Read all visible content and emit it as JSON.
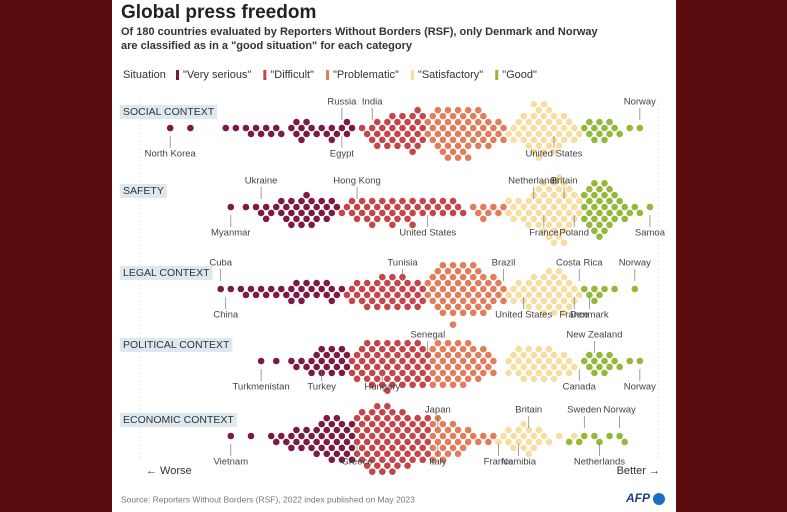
{
  "chart_data": {
    "type": "beeswarm",
    "title": "Global press freedom",
    "subtitle": [
      "Of 180 countries evaluated by Reporters Without Borders (RSF), only Denmark and Norway",
      "are classified as in a \"good situation\" for each category"
    ],
    "legend_title": "Situation",
    "situations": [
      {
        "name": "\"Very serious\"",
        "color": "#7a1a45"
      },
      {
        "name": "\"Difficult\"",
        "color": "#c4454a"
      },
      {
        "name": "\"Problematic\"",
        "color": "#e17d5b"
      },
      {
        "name": "\"Satisfactory\"",
        "color": "#f6dea0"
      },
      {
        "name": "\"Good\"",
        "color": "#93b83a"
      }
    ],
    "xlim": [
      0,
      100
    ],
    "rows": [
      {
        "label": "SOCIAL CONTEXT",
        "groups": [
          [
            4,
            8,
            15,
            17,
            19,
            20,
            21,
            22,
            23,
            24,
            25,
            26,
            28,
            29,
            29,
            30,
            30,
            31,
            31,
            32,
            33,
            34,
            35,
            36,
            36,
            37,
            38,
            39,
            39,
            40
          ],
          [
            42,
            43,
            44,
            45,
            45,
            46,
            47,
            47,
            48,
            48,
            49,
            49,
            50,
            50,
            51,
            51,
            52,
            52,
            52,
            53,
            53,
            53,
            54,
            54,
            54,
            44,
            46,
            48,
            50,
            51,
            49,
            52,
            53,
            47,
            45
          ],
          [
            55,
            55,
            56,
            56,
            56,
            57,
            57,
            57,
            58,
            58,
            58,
            58,
            59,
            59,
            59,
            59,
            60,
            60,
            60,
            60,
            61,
            61,
            61,
            61,
            62,
            62,
            62,
            62,
            63,
            63,
            63,
            63,
            64,
            64,
            64,
            65,
            65,
            65,
            66,
            66,
            66,
            67,
            67,
            67,
            68,
            68,
            69,
            69,
            70,
            70,
            57,
            59,
            61,
            63,
            65
          ],
          [
            71,
            72,
            72,
            73,
            73,
            74,
            74,
            74,
            75,
            75,
            75,
            76,
            76,
            76,
            76,
            77,
            77,
            77,
            77,
            78,
            78,
            78,
            78,
            79,
            79,
            79,
            80,
            80,
            80,
            81,
            81,
            81,
            82,
            82,
            82,
            83,
            83,
            84,
            84,
            85,
            76,
            77,
            78,
            79,
            80
          ],
          [
            86,
            87,
            87,
            88,
            88,
            89,
            89,
            90,
            90,
            91,
            91,
            92,
            93,
            95,
            97
          ]
        ],
        "annotations": [
          {
            "text": "North Korea",
            "x": 4
          },
          {
            "text": "Russia",
            "x": 38
          },
          {
            "text": "Egypt",
            "x": 38
          },
          {
            "text": "India",
            "x": 44
          },
          {
            "text": "United States",
            "x": 80
          },
          {
            "text": "Norway",
            "x": 97
          }
        ]
      },
      {
        "label": "SAFETY",
        "groups": [
          [
            16,
            19,
            21,
            22,
            23,
            23,
            24,
            25,
            26,
            26,
            27,
            27,
            28,
            28,
            29,
            29,
            30,
            30,
            31,
            31,
            31,
            32,
            32,
            33,
            33,
            34,
            34,
            35,
            35,
            36,
            36,
            37,
            30,
            28,
            32
          ],
          [
            38,
            39,
            40,
            40,
            41,
            41,
            42,
            42,
            43,
            43,
            44,
            44,
            45,
            45,
            46,
            46,
            47,
            47,
            48,
            48,
            49,
            49,
            50,
            50,
            51,
            51,
            52,
            52,
            53,
            54,
            54,
            55,
            56,
            56,
            57,
            58,
            58,
            59,
            60,
            60,
            61,
            62,
            44,
            48,
            52
          ],
          [
            64,
            65,
            66,
            66,
            67,
            68,
            69,
            70
          ],
          [
            71,
            71,
            72,
            72,
            73,
            73,
            74,
            74,
            75,
            75,
            76,
            76,
            77,
            77,
            78,
            78,
            78,
            79,
            79,
            79,
            80,
            80,
            80,
            80,
            81,
            81,
            81,
            81,
            82,
            82,
            82,
            82,
            83,
            83,
            83,
            84,
            84,
            84,
            85,
            85,
            75,
            76,
            77,
            78,
            79,
            80,
            81,
            82,
            83,
            79,
            80,
            81,
            82,
            78,
            77
          ],
          [
            86,
            86,
            86,
            87,
            87,
            87,
            87,
            88,
            88,
            88,
            88,
            89,
            89,
            89,
            89,
            90,
            90,
            90,
            90,
            91,
            91,
            91,
            92,
            92,
            92,
            93,
            93,
            94,
            94,
            95,
            96,
            97,
            99,
            88,
            89,
            90,
            91
          ]
        ],
        "annotations": [
          {
            "text": "Ukraine",
            "x": 22
          },
          {
            "text": "Myanmar",
            "x": 16
          },
          {
            "text": "Hong Kong",
            "x": 41
          },
          {
            "text": "United States",
            "x": 55
          },
          {
            "text": "Netherlands",
            "x": 76
          },
          {
            "text": "France",
            "x": 78
          },
          {
            "text": "Britain",
            "x": 82
          },
          {
            "text": "Poland",
            "x": 84
          },
          {
            "text": "Samoa",
            "x": 99
          }
        ]
      },
      {
        "label": "LEGAL CONTEXT",
        "groups": [
          [
            14,
            16,
            18,
            19,
            20,
            21,
            22,
            23,
            24,
            25,
            26,
            27,
            28,
            29,
            29,
            30,
            30,
            31,
            32,
            33,
            34,
            35,
            35,
            36,
            37,
            38,
            28,
            31,
            33,
            36
          ],
          [
            39,
            40,
            40,
            41,
            41,
            42,
            42,
            43,
            43,
            44,
            44,
            45,
            45,
            46,
            46,
            47,
            47,
            48,
            48,
            49,
            49,
            50,
            50,
            51,
            51,
            52,
            52,
            53,
            53,
            54,
            54,
            43,
            45,
            47,
            49,
            51,
            53,
            46,
            48,
            50
          ],
          [
            55,
            55,
            56,
            56,
            56,
            57,
            57,
            57,
            57,
            58,
            58,
            58,
            58,
            59,
            59,
            59,
            59,
            60,
            60,
            60,
            60,
            60,
            61,
            61,
            61,
            61,
            62,
            62,
            62,
            62,
            63,
            63,
            63,
            63,
            64,
            64,
            64,
            64,
            65,
            65,
            65,
            65,
            66,
            66,
            66,
            67,
            67,
            67,
            68,
            68,
            68,
            69,
            69,
            70,
            70,
            58,
            60,
            62,
            64,
            66
          ],
          [
            71,
            72,
            72,
            73,
            73,
            74,
            74,
            75,
            75,
            76,
            76,
            77,
            77,
            77,
            78,
            78,
            78,
            79,
            79,
            79,
            80,
            80,
            80,
            81,
            81,
            81,
            82,
            82,
            82,
            83,
            83,
            84,
            84,
            85,
            75,
            76,
            78,
            79,
            80,
            81,
            82,
            83
          ],
          [
            86,
            87,
            88,
            88,
            89,
            90,
            92,
            96
          ]
        ],
        "annotations": [
          {
            "text": "Cuba",
            "x": 14
          },
          {
            "text": "China",
            "x": 15
          },
          {
            "text": "Tunisia",
            "x": 50
          },
          {
            "text": "Brazil",
            "x": 70
          },
          {
            "text": "United States",
            "x": 74
          },
          {
            "text": "Costa Rica",
            "x": 85
          },
          {
            "text": "France",
            "x": 84
          },
          {
            "text": "Denmark",
            "x": 87
          },
          {
            "text": "Norway",
            "x": 96
          }
        ]
      },
      {
        "label": "POLITICAL CONTEXT",
        "groups": [
          [
            22,
            25,
            28,
            29,
            30,
            31,
            32,
            33,
            33,
            34,
            34,
            35,
            35,
            36,
            36,
            37,
            37,
            38,
            38,
            39,
            39,
            32,
            34,
            36,
            38
          ],
          [
            40,
            40,
            41,
            41,
            41,
            42,
            42,
            42,
            43,
            43,
            43,
            43,
            44,
            44,
            44,
            44,
            45,
            45,
            45,
            45,
            46,
            46,
            46,
            46,
            47,
            47,
            47,
            47,
            47,
            48,
            48,
            48,
            48,
            49,
            49,
            49,
            49,
            50,
            50,
            50,
            50,
            51,
            51,
            51,
            51,
            52,
            52,
            52,
            52,
            53,
            53,
            53,
            53,
            54,
            54,
            54,
            54,
            55,
            55,
            55
          ],
          [
            56,
            56,
            56,
            56,
            57,
            57,
            57,
            57,
            58,
            58,
            58,
            58,
            59,
            59,
            59,
            59,
            60,
            60,
            60,
            60,
            61,
            61,
            61,
            61,
            62,
            62,
            62,
            62,
            63,
            63,
            63,
            63,
            64,
            64,
            64,
            65,
            65,
            65,
            66,
            66,
            66,
            67,
            67,
            68,
            68
          ],
          [
            71,
            71,
            72,
            72,
            73,
            73,
            73,
            74,
            74,
            74,
            75,
            75,
            75,
            76,
            76,
            76,
            77,
            77,
            77,
            78,
            78,
            78,
            79,
            79,
            79,
            80,
            80,
            80,
            81,
            81,
            82,
            82,
            83,
            83,
            84
          ],
          [
            86,
            87,
            87,
            88,
            88,
            89,
            89,
            90,
            90,
            91,
            91,
            92,
            93,
            95,
            97
          ]
        ],
        "annotations": [
          {
            "text": "Senegal",
            "x": 55
          },
          {
            "text": "Turkmenistan",
            "x": 22
          },
          {
            "text": "Turkey",
            "x": 34
          },
          {
            "text": "Hungary",
            "x": 46
          },
          {
            "text": "New Zealand",
            "x": 88
          },
          {
            "text": "Canada",
            "x": 85
          },
          {
            "text": "Norway",
            "x": 97
          }
        ]
      },
      {
        "label": "ECONOMIC CONTEXT",
        "groups": [
          [
            16,
            20,
            24,
            25,
            26,
            27,
            28,
            28,
            29,
            29,
            30,
            30,
            31,
            31,
            32,
            32,
            33,
            33,
            33,
            34,
            34,
            34,
            35,
            35,
            35,
            35,
            36,
            36,
            36,
            36,
            37,
            37,
            37,
            37,
            38,
            38,
            38,
            38,
            39,
            39,
            39,
            40,
            40,
            40,
            40
          ],
          [
            41,
            41,
            41,
            41,
            42,
            42,
            42,
            42,
            42,
            43,
            43,
            43,
            43,
            43,
            44,
            44,
            44,
            44,
            44,
            44,
            45,
            45,
            45,
            45,
            45,
            45,
            46,
            46,
            46,
            46,
            46,
            46,
            47,
            47,
            47,
            47,
            47,
            47,
            48,
            48,
            48,
            48,
            48,
            48,
            49,
            49,
            49,
            49,
            49,
            50,
            50,
            50,
            50,
            50,
            51,
            51,
            51,
            51,
            51,
            52,
            52,
            52,
            52,
            53,
            53,
            53,
            53,
            54,
            54,
            54,
            54,
            55,
            55,
            55,
            55
          ],
          [
            56,
            56,
            56,
            56,
            57,
            57,
            57,
            57,
            58,
            58,
            58,
            58,
            59,
            59,
            59,
            60,
            60,
            60,
            61,
            61,
            61,
            62,
            62,
            63,
            63,
            64,
            65,
            66,
            67,
            68
          ],
          [
            69,
            70,
            71,
            71,
            72,
            72,
            73,
            73,
            74,
            74,
            74,
            75,
            75,
            75,
            76,
            76,
            77,
            77,
            78,
            79,
            81,
            84
          ],
          [
            83,
            85,
            86,
            88,
            89,
            91,
            93,
            94
          ]
        ],
        "annotations": [
          {
            "text": "Vietnam",
            "x": 16
          },
          {
            "text": "Greece",
            "x": 41
          },
          {
            "text": "Japan",
            "x": 57
          },
          {
            "text": "Italy",
            "x": 57
          },
          {
            "text": "France",
            "x": 69
          },
          {
            "text": "Britain",
            "x": 75
          },
          {
            "text": "Namibia",
            "x": 73
          },
          {
            "text": "Sweden",
            "x": 86
          },
          {
            "text": "Netherlands",
            "x": 89
          },
          {
            "text": "Norway",
            "x": 93
          }
        ]
      }
    ],
    "worse_label": "← Worse",
    "better_label": "Better →",
    "source": "Source: Reporters Without Borders (RSF), 2022 index published on May 2023",
    "logo": "AFP"
  }
}
